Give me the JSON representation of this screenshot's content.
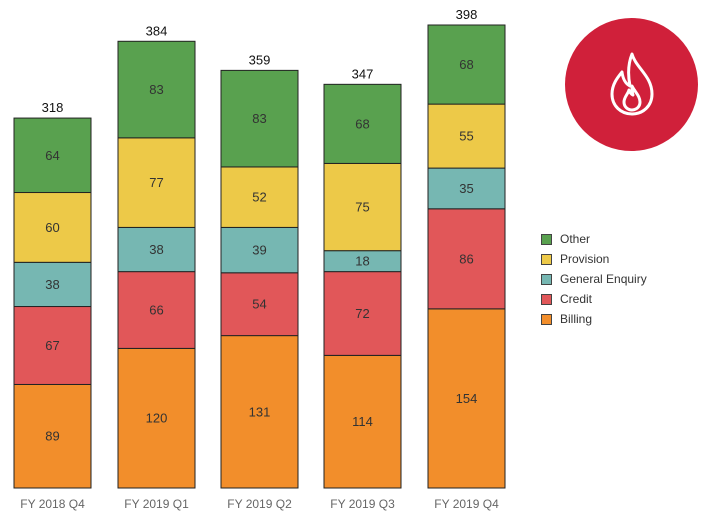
{
  "chart_data": {
    "type": "bar",
    "stacked": true,
    "categories": [
      "FY 2018 Q4",
      "FY 2019 Q1",
      "FY 2019 Q2",
      "FY 2019 Q3",
      "FY 2019 Q4"
    ],
    "series": [
      {
        "name": "Billing",
        "color": "#F28E2B",
        "values": [
          89,
          120,
          131,
          114,
          154
        ]
      },
      {
        "name": "Credit",
        "color": "#E15759",
        "values": [
          67,
          66,
          54,
          72,
          86
        ]
      },
      {
        "name": "General Enquiry",
        "color": "#76B7B2",
        "values": [
          38,
          38,
          39,
          18,
          35
        ]
      },
      {
        "name": "Provision",
        "color": "#EDC948",
        "values": [
          60,
          77,
          52,
          75,
          55
        ]
      },
      {
        "name": "Other",
        "color": "#59A14F",
        "values": [
          64,
          83,
          83,
          68,
          68
        ]
      }
    ],
    "totals": [
      318,
      384,
      359,
      347,
      398
    ],
    "legend_order": [
      "Other",
      "Provision",
      "General Enquiry",
      "Credit",
      "Billing"
    ],
    "legend_position": "right",
    "grid": false,
    "ylim": [
      0,
      398
    ]
  },
  "badge": {
    "icon": "flame-icon",
    "color": "#D0203A"
  }
}
